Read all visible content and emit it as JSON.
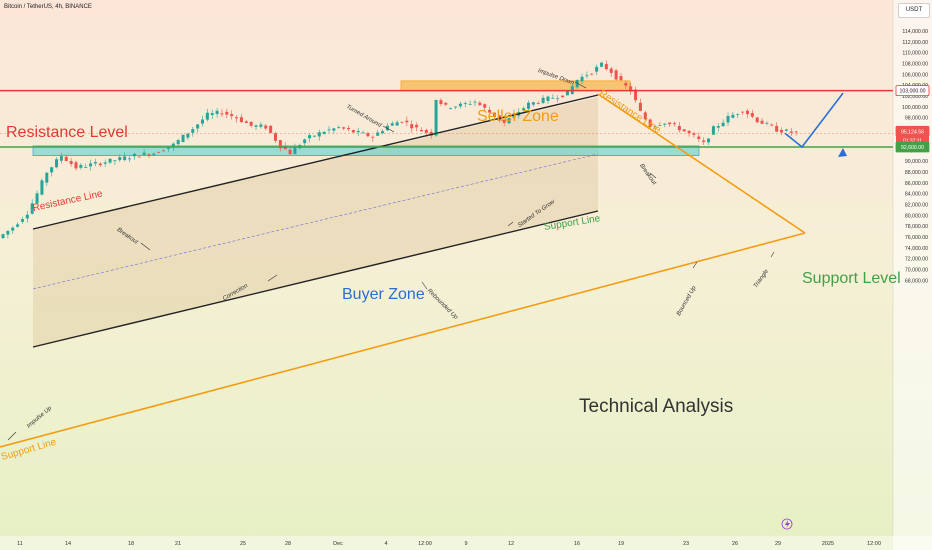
{
  "header": {
    "symbol_line": "Bitcoin / TetherUS, 4h, BINANCE",
    "currency": "USDT"
  },
  "colors": {
    "up": "#26a69a",
    "down": "#ef5350",
    "resistance_red": "#e53935",
    "support_green": "#43a047",
    "orange": "#f39c12",
    "channel": "#222222",
    "buyer_zone": "#4fd1c5",
    "seller_zone": "#f6a623",
    "arrow_blue": "#2b6fd6"
  },
  "annotations": {
    "resistance_level": "Resistance Level",
    "resistance_line_left": "Resistance Line",
    "resistance_line_right": "Resistance Line",
    "seller_zone": "Seller Zone",
    "buyer_zone": "Buyer Zone",
    "support_line_mid": "Support Line",
    "support_line_left": "Support Line",
    "support_level": "Support Level",
    "technical_analysis": "Technical Analysis",
    "impulse_up": "Impulse Up",
    "impulse_down": "Impulse Down",
    "turned_around": "Turned Around",
    "breakout_left": "Breakout",
    "breakout_right": "Breakout",
    "correction": "Correction",
    "rebounded_up": "Rebounded Up",
    "started_to_grow": "Started To Grow",
    "bounced_up": "Bounced Up",
    "triangle": "Triangle"
  },
  "chart_data": {
    "type": "candlestick",
    "title": "Bitcoin / TetherUS, 4h, BINANCE",
    "y_axis": {
      "range": [
        68000,
        115000
      ],
      "ticks": [
        "114,000.00",
        "112,000.00",
        "110,000.00",
        "108,000.00",
        "106,000.00",
        "104,000.00",
        "102,000.00",
        "100,000.00",
        "98,000.00",
        "96,000.00",
        "94,000.00",
        "92,000.00",
        "90,000.00",
        "88,000.00",
        "86,000.00",
        "84,000.00",
        "82,000.00",
        "80,000.00",
        "78,000.00",
        "76,000.00",
        "74,000.00",
        "72,000.00",
        "70,000.00",
        "68,000.00"
      ]
    },
    "x_axis": {
      "ticks": [
        "11",
        "14",
        "18",
        "21",
        "25",
        "28",
        "Dec",
        "4",
        "12:00",
        "9",
        "12",
        "16",
        "19",
        "23",
        "26",
        "29",
        "2025",
        "12:00"
      ]
    },
    "price_labels": {
      "resistance": "103,000.00",
      "current": "95,124.56",
      "countdown": "01:37:11",
      "support": "92,600.00"
    },
    "levels": {
      "resistance": 103000,
      "support": 92600
    },
    "price_path": [
      [
        0,
        75800
      ],
      [
        3,
        77800
      ],
      [
        6,
        80500
      ],
      [
        8,
        84000
      ],
      [
        10,
        88000
      ],
      [
        13,
        91000
      ],
      [
        16,
        88800
      ],
      [
        20,
        89500
      ],
      [
        24,
        90200
      ],
      [
        28,
        91000
      ],
      [
        32,
        91500
      ],
      [
        36,
        93000
      ],
      [
        40,
        96000
      ],
      [
        43,
        98500
      ],
      [
        46,
        99000
      ],
      [
        49,
        98000
      ],
      [
        52,
        96500
      ],
      [
        55,
        96300
      ],
      [
        58,
        92800
      ],
      [
        60,
        91500
      ],
      [
        63,
        94000
      ],
      [
        67,
        95500
      ],
      [
        70,
        96200
      ],
      [
        73,
        95400
      ],
      [
        77,
        94500
      ],
      [
        80,
        96500
      ],
      [
        83,
        97500
      ],
      [
        86,
        96000
      ],
      [
        89,
        95000
      ],
      [
        90,
        101500
      ],
      [
        92,
        100000
      ],
      [
        95,
        100300
      ],
      [
        98,
        101000
      ],
      [
        101,
        99000
      ],
      [
        104,
        97000
      ],
      [
        106,
        98500
      ],
      [
        109,
        100500
      ],
      [
        113,
        101500
      ],
      [
        117,
        102500
      ],
      [
        119,
        105000
      ],
      [
        122,
        106500
      ],
      [
        124,
        107800
      ],
      [
        126,
        106500
      ],
      [
        128,
        104500
      ],
      [
        130,
        103000
      ],
      [
        132,
        99000
      ],
      [
        134,
        96500
      ],
      [
        137,
        97200
      ],
      [
        140,
        96000
      ],
      [
        143,
        94500
      ],
      [
        145,
        93200
      ],
      [
        147,
        96000
      ],
      [
        150,
        98000
      ],
      [
        153,
        99500
      ],
      [
        156,
        97500
      ],
      [
        160,
        95800
      ],
      [
        164,
        95124
      ]
    ],
    "zones": {
      "seller_zone": [
        103000,
        104800
      ],
      "buyer_zone": [
        91000,
        92800
      ]
    },
    "projection": [
      [
        164,
        95124
      ],
      [
        169,
        92600
      ],
      [
        178,
        102900
      ]
    ]
  }
}
